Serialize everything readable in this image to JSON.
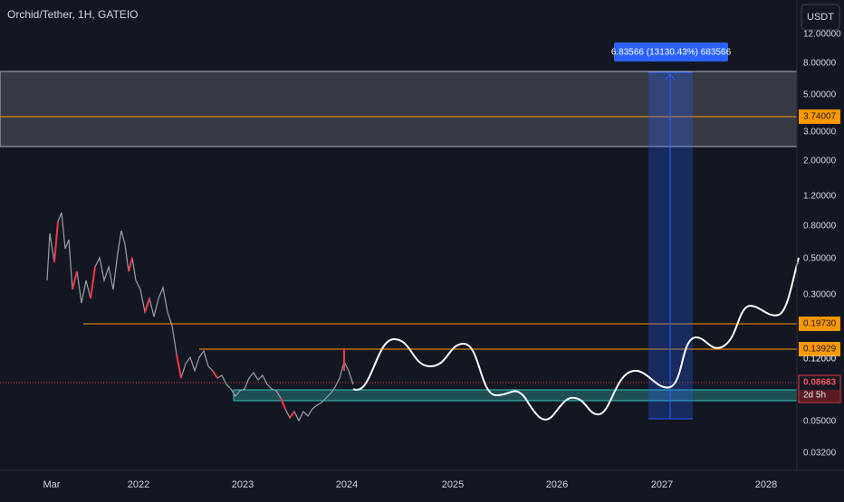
{
  "header": {
    "title": "Orchid/Tether, 1H, GATEIO",
    "currency": "USDT"
  },
  "price_axis": {
    "labels": [
      "12.00000",
      "8.00000",
      "5.00000",
      "3.00000",
      "2.00000",
      "1.20000",
      "0.80000",
      "0.50000",
      "0.30000",
      "0.12000",
      "0.05000",
      "0.03200"
    ]
  },
  "time_axis": {
    "labels": [
      "Mar",
      "2022",
      "2023",
      "2024",
      "2025",
      "2026",
      "2027",
      "2028"
    ]
  },
  "price_tags": [
    "3.74007",
    "0.19730",
    "0.13929",
    "0.12000"
  ],
  "current_price": {
    "price": "0.08683",
    "countdown": "2d 5h"
  },
  "measure": {
    "label": "6.83566 (13130.43%) 683566"
  }
}
